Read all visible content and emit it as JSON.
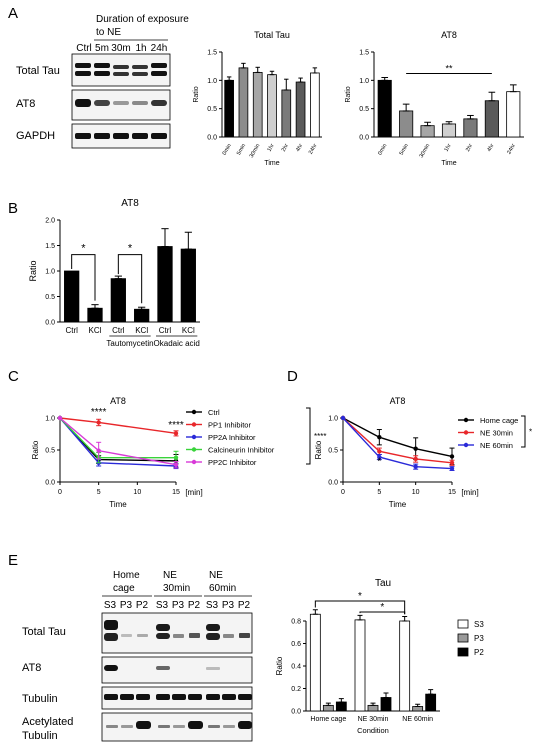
{
  "panel_labels": [
    "A",
    "B",
    "C",
    "D",
    "E"
  ],
  "blot_a": {
    "header": "Duration of exposure",
    "header2": "to NE",
    "lanes": [
      "Ctrl",
      "5m",
      "30m",
      "1h",
      "24h"
    ],
    "rows": [
      "Total Tau",
      "AT8",
      "GAPDH"
    ]
  },
  "blot_e": {
    "groups": [
      "Home cage",
      "NE 30min",
      "NE 60min"
    ],
    "group_line1": [
      "Home",
      "NE",
      "NE"
    ],
    "group_line2": [
      "cage",
      "30min",
      "60min"
    ],
    "fractions": [
      "S3",
      "P3",
      "P2"
    ],
    "rows": [
      "Total Tau",
      "AT8",
      "Tubulin",
      "Acetylated",
      "Tubulin"
    ]
  },
  "chart_data": [
    {
      "id": "A1",
      "type": "bar",
      "title": "Total Tau",
      "categories": [
        "0min",
        "5min",
        "30min",
        "1hr",
        "2hr",
        "4hr",
        "24hr"
      ],
      "values": [
        1.0,
        1.22,
        1.14,
        1.1,
        0.83,
        0.97,
        1.13
      ],
      "errors": [
        0.06,
        0.08,
        0.09,
        0.06,
        0.19,
        0.07,
        0.09
      ],
      "colors": [
        "#000000",
        "#8c8c8c",
        "#a6a6a6",
        "#cfcfcf",
        "#7a7a7a",
        "#5a5a5a",
        "#ffffff"
      ],
      "xlabel": "Time",
      "ylabel": "Ratio",
      "ylim": [
        0,
        1.5
      ],
      "yticks": [
        "0.0",
        "0.5",
        "1.0",
        "1.5"
      ],
      "sig": []
    },
    {
      "id": "A2",
      "type": "bar",
      "title": "AT8",
      "categories": [
        "0min",
        "5min",
        "30min",
        "1hr",
        "2hr",
        "4hr",
        "24hr"
      ],
      "values": [
        1.0,
        0.46,
        0.2,
        0.23,
        0.32,
        0.64,
        0.8
      ],
      "errors": [
        0.05,
        0.12,
        0.06,
        0.04,
        0.06,
        0.15,
        0.12
      ],
      "colors": [
        "#000000",
        "#8c8c8c",
        "#a6a6a6",
        "#cfcfcf",
        "#7a7a7a",
        "#5a5a5a",
        "#ffffff"
      ],
      "xlabel": "Time",
      "ylabel": "Ratio",
      "ylim": [
        0,
        1.5
      ],
      "yticks": [
        "0.0",
        "0.5",
        "1.0",
        "1.5"
      ],
      "sig": [
        {
          "from": 1,
          "to": 5,
          "label": "**"
        }
      ]
    },
    {
      "id": "B",
      "type": "bar",
      "title": "AT8",
      "categories": [
        "Ctrl",
        "KCl",
        "Ctrl",
        "KCl",
        "Ctrl",
        "KCl"
      ],
      "group_labels": [
        "Tautomycetin",
        "Okadaic acid"
      ],
      "values": [
        1.0,
        0.27,
        0.85,
        0.25,
        1.48,
        1.43
      ],
      "errors": [
        0.0,
        0.07,
        0.05,
        0.04,
        0.35,
        0.33
      ],
      "xlabel": "",
      "ylabel": "Ratio",
      "ylim": [
        0,
        2.0
      ],
      "yticks": [
        "0.0",
        "0.5",
        "1.0",
        "1.5",
        "2.0"
      ],
      "sig": [
        {
          "from": 0,
          "to": 1,
          "label": "*"
        },
        {
          "from": 2,
          "to": 3,
          "label": "*"
        }
      ]
    },
    {
      "id": "C",
      "type": "line",
      "title": "AT8",
      "x": [
        0,
        5,
        15
      ],
      "xlabel": "Time",
      "xunit": "[min]",
      "ylabel": "Ratio",
      "xlim": [
        0,
        15
      ],
      "ylim": [
        0,
        1.0
      ],
      "xticks": [
        "0",
        "5",
        "10",
        "15"
      ],
      "yticks": [
        "0.0",
        "0.5",
        "1.0"
      ],
      "series": [
        {
          "name": "Ctrl",
          "color": "#000000",
          "values": [
            1.0,
            0.35,
            0.33
          ],
          "errors": [
            0,
            0.06,
            0.1
          ]
        },
        {
          "name": "PP1 Inhibitor",
          "color": "#e8262a",
          "values": [
            1.0,
            0.93,
            0.76
          ],
          "errors": [
            0,
            0.05,
            0.04
          ]
        },
        {
          "name": "PP2A Inhibitor",
          "color": "#2a2ad8",
          "values": [
            1.0,
            0.3,
            0.25
          ],
          "errors": [
            0,
            0.05,
            0.04
          ]
        },
        {
          "name": "Calcineurin Inhibitor",
          "color": "#39d33a",
          "values": [
            1.0,
            0.38,
            0.38
          ],
          "errors": [
            0,
            0.08,
            0.1
          ]
        },
        {
          "name": "PP2C Inhibitor",
          "color": "#d83ad8",
          "values": [
            1.0,
            0.49,
            0.27
          ],
          "errors": [
            0,
            0.13,
            0.05
          ]
        }
      ],
      "annotations": [
        {
          "x": 5,
          "label": "****"
        },
        {
          "x": 15,
          "label": "****"
        }
      ],
      "legend_sig": "****"
    },
    {
      "id": "D",
      "type": "line",
      "title": "AT8",
      "x": [
        0,
        5,
        10,
        15
      ],
      "xlabel": "Time",
      "xunit": "[min]",
      "ylabel": "Ratio",
      "xlim": [
        0,
        15
      ],
      "ylim": [
        0,
        1.0
      ],
      "xticks": [
        "0",
        "5",
        "10",
        "15"
      ],
      "yticks": [
        "0.0",
        "0.5",
        "1.0"
      ],
      "series": [
        {
          "name": "Home cage",
          "color": "#000000",
          "values": [
            1.0,
            0.7,
            0.52,
            0.4
          ],
          "errors": [
            0,
            0.12,
            0.17,
            0.13
          ]
        },
        {
          "name": "NE 30min",
          "color": "#e8262a",
          "values": [
            1.0,
            0.48,
            0.36,
            0.3
          ],
          "errors": [
            0,
            0.05,
            0.05,
            0.04
          ]
        },
        {
          "name": "NE 60min",
          "color": "#2a2ad8",
          "values": [
            1.0,
            0.39,
            0.24,
            0.21
          ],
          "errors": [
            0,
            0.04,
            0.04,
            0.03
          ]
        }
      ],
      "annotations": [
        {
          "x": 5,
          "label": "*"
        }
      ],
      "legend_sig": "*"
    },
    {
      "id": "E",
      "type": "bar",
      "title": "Tau",
      "categories": [
        "Home cage",
        "NE 30min",
        "NE 60min"
      ],
      "xlabel": "Condition",
      "ylabel": "Ratio",
      "ylim": [
        0,
        0.8
      ],
      "yticks": [
        "0.0",
        "0.2",
        "0.4",
        "0.6",
        "0.8"
      ],
      "series": [
        {
          "name": "S3",
          "color": "#ffffff",
          "values": [
            0.86,
            0.81,
            0.8
          ],
          "errors": [
            0.04,
            0.04,
            0.04
          ]
        },
        {
          "name": "P3",
          "color": "#9a9a9a",
          "values": [
            0.05,
            0.05,
            0.04
          ],
          "errors": [
            0.02,
            0.02,
            0.02
          ]
        },
        {
          "name": "P2",
          "color": "#000000",
          "values": [
            0.08,
            0.12,
            0.15
          ],
          "errors": [
            0.03,
            0.04,
            0.04
          ]
        }
      ],
      "sig": [
        {
          "from": 0,
          "to": 2,
          "label": "*"
        },
        {
          "from": 1,
          "to": 2,
          "label": "*"
        }
      ]
    }
  ]
}
